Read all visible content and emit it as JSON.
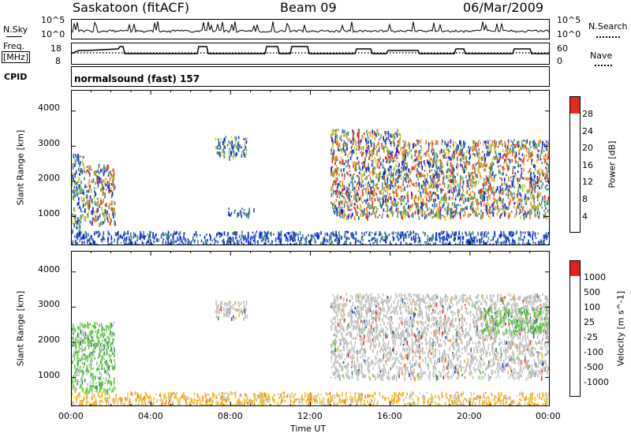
{
  "header": {
    "station": "Saskatoon (fitACF)",
    "beam": "Beam 09",
    "date": "06/Mar/2009"
  },
  "top_panels": {
    "nsky_label": "N.Sky",
    "nsky_ticks": [
      "10^5",
      "10^0"
    ],
    "nsearch_label": "N.Search",
    "nsearch_ticks": [
      "10^5",
      "10^0"
    ],
    "freq_label_1": "Freq.",
    "freq_label_2": "[MHz]",
    "freq_ticks": [
      "18",
      "8"
    ],
    "nave_label": "Nave",
    "nave_ticks": [
      "60",
      "0"
    ],
    "cpid_label": "CPID",
    "cpid_value": "normalsound (fast) 157"
  },
  "chart_data": [
    {
      "type": "heatmap",
      "name": "power",
      "ylabel": "Slant Range [km]",
      "y_ticks": [
        "1000",
        "2000",
        "3000",
        "4000"
      ],
      "ylim": [
        180,
        4600
      ],
      "colorbar_label": "Power [dB]",
      "colorbar_ticks": [
        "4",
        "8",
        "12",
        "16",
        "20",
        "24",
        "28"
      ],
      "colorbar_colors": [
        "#0a1ee6",
        "#2a55b5",
        "#3f8a88",
        "#4ea85a",
        "#c9d12a",
        "#f0a623",
        "#f07520",
        "#e62b1e"
      ],
      "echo_regions": [
        {
          "t": [
            0.0,
            0.6
          ],
          "r": [
            600,
            2800
          ],
          "level": "mixed"
        },
        {
          "t": [
            0.6,
            2.2
          ],
          "r": [
            800,
            2500
          ],
          "level": "high"
        },
        {
          "t": [
            7.2,
            8.8
          ],
          "r": [
            2700,
            3300
          ],
          "level": "mixed"
        },
        {
          "t": [
            7.8,
            9.2
          ],
          "r": [
            1050,
            1250
          ],
          "level": "low"
        },
        {
          "t": [
            13.0,
            16.5
          ],
          "r": [
            1000,
            3500
          ],
          "level": "high"
        },
        {
          "t": [
            16.5,
            24.0
          ],
          "r": [
            1000,
            3200
          ],
          "level": "high"
        },
        {
          "t": [
            0.0,
            24.0
          ],
          "r": [
            200,
            600
          ],
          "level": "low"
        }
      ]
    },
    {
      "type": "heatmap",
      "name": "velocity",
      "ylabel": "Slant Range [km]",
      "y_ticks": [
        "1000",
        "2000",
        "3000",
        "4000"
      ],
      "ylim": [
        180,
        4600
      ],
      "colorbar_label": "Velocity [m s^-1]",
      "colorbar_ticks": [
        "1000",
        "500",
        "100",
        "25",
        "-25",
        "-100",
        "-500",
        "-1000"
      ],
      "colorbar_colors": [
        "#1b3fc4",
        "#2f6a9c",
        "#3c8a6e",
        "#5ccd3a",
        "#c0c0c0",
        "#f0c020",
        "#f08a20",
        "#f04a1e",
        "#e61e1e"
      ],
      "echo_regions": [
        {
          "t": [
            0.0,
            2.2
          ],
          "r": [
            600,
            2600
          ],
          "level": "green"
        },
        {
          "t": [
            7.2,
            8.8
          ],
          "r": [
            2700,
            3200
          ],
          "level": "grey"
        },
        {
          "t": [
            13.0,
            24.0
          ],
          "r": [
            1000,
            3400
          ],
          "level": "grey"
        },
        {
          "t": [
            20.5,
            24.0
          ],
          "r": [
            2300,
            3000
          ],
          "level": "green"
        },
        {
          "t": [
            0.0,
            24.0
          ],
          "r": [
            200,
            600
          ],
          "level": "yellow"
        }
      ]
    }
  ],
  "x_axis": {
    "xlabel": "Time UT",
    "ticks": [
      "00:00",
      "04:00",
      "08:00",
      "12:00",
      "16:00",
      "20:00",
      "00:00"
    ]
  }
}
